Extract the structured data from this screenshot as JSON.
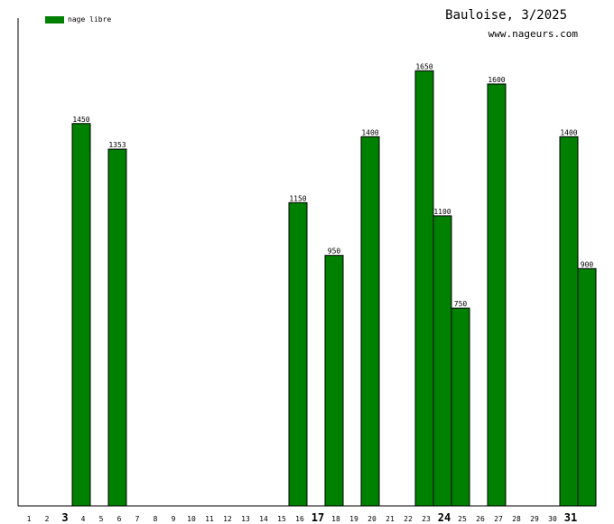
{
  "chart_data": {
    "type": "bar",
    "title": "Bauloise, 3/2025",
    "subtitle": "www.nageurs.com",
    "xlabel": "",
    "ylabel": "",
    "ylim": [
      0,
      1850
    ],
    "grid": false,
    "legend_position": "top-left",
    "categories": [
      "1",
      "2",
      "3",
      "4",
      "5",
      "6",
      "7",
      "8",
      "9",
      "10",
      "11",
      "12",
      "13",
      "14",
      "15",
      "16",
      "17",
      "18",
      "19",
      "20",
      "21",
      "22",
      "23",
      "24",
      "25",
      "26",
      "27",
      "28",
      "29",
      "30",
      "31"
    ],
    "emphasized_categories": [
      "3",
      "17",
      "24",
      "31"
    ],
    "series": [
      {
        "name": "nage libre",
        "color": "#008000",
        "values": [
          null,
          null,
          1450,
          null,
          1353,
          null,
          null,
          null,
          null,
          null,
          null,
          null,
          null,
          null,
          1150,
          null,
          950,
          null,
          1400,
          null,
          null,
          1650,
          1100,
          750,
          null,
          1600,
          null,
          null,
          null,
          1400,
          900
        ]
      }
    ]
  },
  "colors": {
    "bar": "#008000",
    "bar_stroke": "#000000",
    "axis": "#000000"
  }
}
